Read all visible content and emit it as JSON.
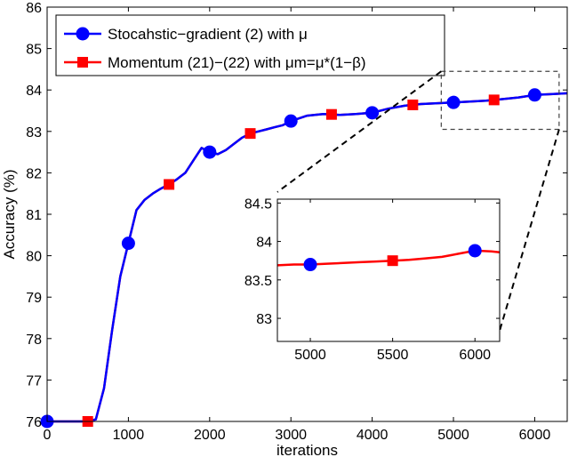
{
  "chart_data": {
    "type": "line",
    "xlabel": "iterations",
    "ylabel": "Accuracy (%)",
    "xlim": [
      0,
      6400
    ],
    "ylim": [
      76,
      86
    ],
    "xticks": [
      0,
      1000,
      2000,
      3000,
      4000,
      5000,
      6000
    ],
    "yticks": [
      76,
      77,
      78,
      79,
      80,
      81,
      82,
      83,
      84,
      85,
      86
    ],
    "grid": false,
    "legend_position": "top-left",
    "series": [
      {
        "name": "Stocahstic−gradient (2) with  μ",
        "color": "#0000ff",
        "marker": "circle",
        "x": [
          0,
          500,
          600,
          700,
          800,
          900,
          1000,
          1100,
          1200,
          1300,
          1400,
          1500,
          1600,
          1700,
          1800,
          1900,
          2000,
          2100,
          2200,
          2300,
          2400,
          2500,
          2600,
          2700,
          2800,
          2900,
          3000,
          3200,
          3400,
          3600,
          3800,
          4000,
          4200,
          4400,
          4600,
          4800,
          5000,
          5200,
          5400,
          5600,
          5800,
          6000,
          6200,
          6400
        ],
        "y": [
          76.0,
          76.0,
          76.05,
          76.8,
          78.2,
          79.5,
          80.3,
          81.1,
          81.35,
          81.5,
          81.62,
          81.72,
          81.85,
          82.0,
          82.3,
          82.6,
          82.5,
          82.45,
          82.55,
          82.7,
          82.85,
          82.95,
          83.0,
          83.05,
          83.1,
          83.15,
          83.25,
          83.38,
          83.42,
          83.4,
          83.42,
          83.45,
          83.55,
          83.62,
          83.66,
          83.68,
          83.7,
          83.72,
          83.74,
          83.78,
          83.82,
          83.88,
          83.9,
          83.92
        ],
        "markers_x": [
          0,
          1000,
          2000,
          3000,
          4000,
          5000,
          6000
        ]
      },
      {
        "name": "Momentum (21)−(22) with  μm=μ*(1−β)",
        "color": "#ff0000",
        "marker": "square",
        "x": [
          0,
          500,
          600,
          700,
          800,
          900,
          1000,
          1100,
          1200,
          1300,
          1400,
          1500,
          1600,
          1700,
          1800,
          1900,
          2000,
          2100,
          2200,
          2300,
          2400,
          2500,
          2600,
          2700,
          2800,
          2900,
          3000,
          3200,
          3400,
          3600,
          3800,
          4000,
          4200,
          4400,
          4600,
          4800,
          5000,
          5200,
          5400,
          5600,
          5800,
          6000,
          6200,
          6400
        ],
        "y": [
          76.0,
          76.0,
          76.05,
          76.8,
          78.2,
          79.5,
          80.3,
          81.1,
          81.35,
          81.5,
          81.62,
          81.72,
          81.85,
          82.0,
          82.3,
          82.6,
          82.5,
          82.45,
          82.55,
          82.7,
          82.85,
          82.95,
          83.0,
          83.05,
          83.1,
          83.15,
          83.25,
          83.38,
          83.42,
          83.4,
          83.42,
          83.45,
          83.55,
          83.62,
          83.66,
          83.68,
          83.7,
          83.72,
          83.74,
          83.78,
          83.82,
          83.88,
          83.9,
          83.92
        ],
        "markers_x": [
          500,
          1500,
          2500,
          3500,
          4500,
          5500
        ]
      }
    ],
    "inset": {
      "xlim": [
        4800,
        6150
      ],
      "ylim": [
        82.7,
        84.55
      ],
      "xticks": [
        5000,
        5500,
        6000
      ],
      "yticks": [
        83,
        83.5,
        84,
        84.5
      ],
      "zoom_box": {
        "x": [
          4850,
          6300
        ],
        "y": [
          83.05,
          84.45
        ]
      },
      "x": [
        4800,
        4900,
        5000,
        5100,
        5200,
        5300,
        5400,
        5500,
        5600,
        5700,
        5800,
        5900,
        6000,
        6100,
        6150
      ],
      "y": [
        83.69,
        83.7,
        83.7,
        83.71,
        83.72,
        83.73,
        83.74,
        83.75,
        83.76,
        83.78,
        83.8,
        83.84,
        83.88,
        83.87,
        83.86
      ],
      "circle_markers_x": [
        5000,
        6000
      ],
      "square_markers_x": [
        5500
      ]
    }
  }
}
